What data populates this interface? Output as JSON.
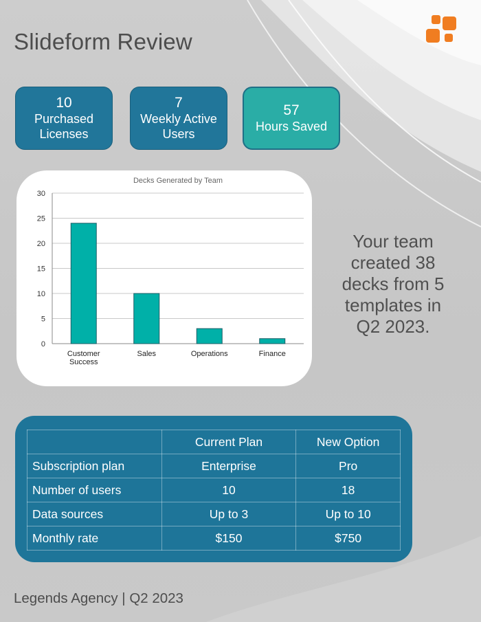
{
  "header": {
    "title": "Slideform Review"
  },
  "stats": [
    {
      "value": "10",
      "label": "Purchased Licenses"
    },
    {
      "value": "7",
      "label": "Weekly Active Users"
    },
    {
      "value": "57",
      "label": "Hours Saved"
    }
  ],
  "chart_data": {
    "type": "bar",
    "title": "Decks Generated by Team",
    "categories": [
      "Customer Success",
      "Sales",
      "Operations",
      "Finance"
    ],
    "category_lines": [
      [
        "Customer",
        "Success"
      ],
      [
        "Sales"
      ],
      [
        "Operations"
      ],
      [
        "Finance"
      ]
    ],
    "values": [
      24,
      10,
      3,
      1
    ],
    "ylim": [
      0,
      30
    ],
    "yticks": [
      0,
      5,
      10,
      15,
      20,
      25,
      30
    ],
    "grid": true,
    "bar_color": "#00b0a8"
  },
  "summary": {
    "text": "Your team created 38 decks from 5 templates in Q2 2023."
  },
  "comparison": {
    "headers": [
      "",
      "Current Plan",
      "New Option"
    ],
    "rows": [
      [
        "Subscription plan",
        "Enterprise",
        "Pro"
      ],
      [
        "Number of users",
        "10",
        "18"
      ],
      [
        "Data sources",
        "Up to 3",
        "Up to 10"
      ],
      [
        "Monthly rate",
        "$150",
        "$750"
      ]
    ]
  },
  "footer": {
    "text": "Legends Agency | Q2 2023"
  },
  "colors": {
    "brand_orange": "#f07d21",
    "primary_blue": "#21769a",
    "teal": "#2aada6"
  },
  "logo": {
    "icon": "orange-squares-logo-icon"
  }
}
